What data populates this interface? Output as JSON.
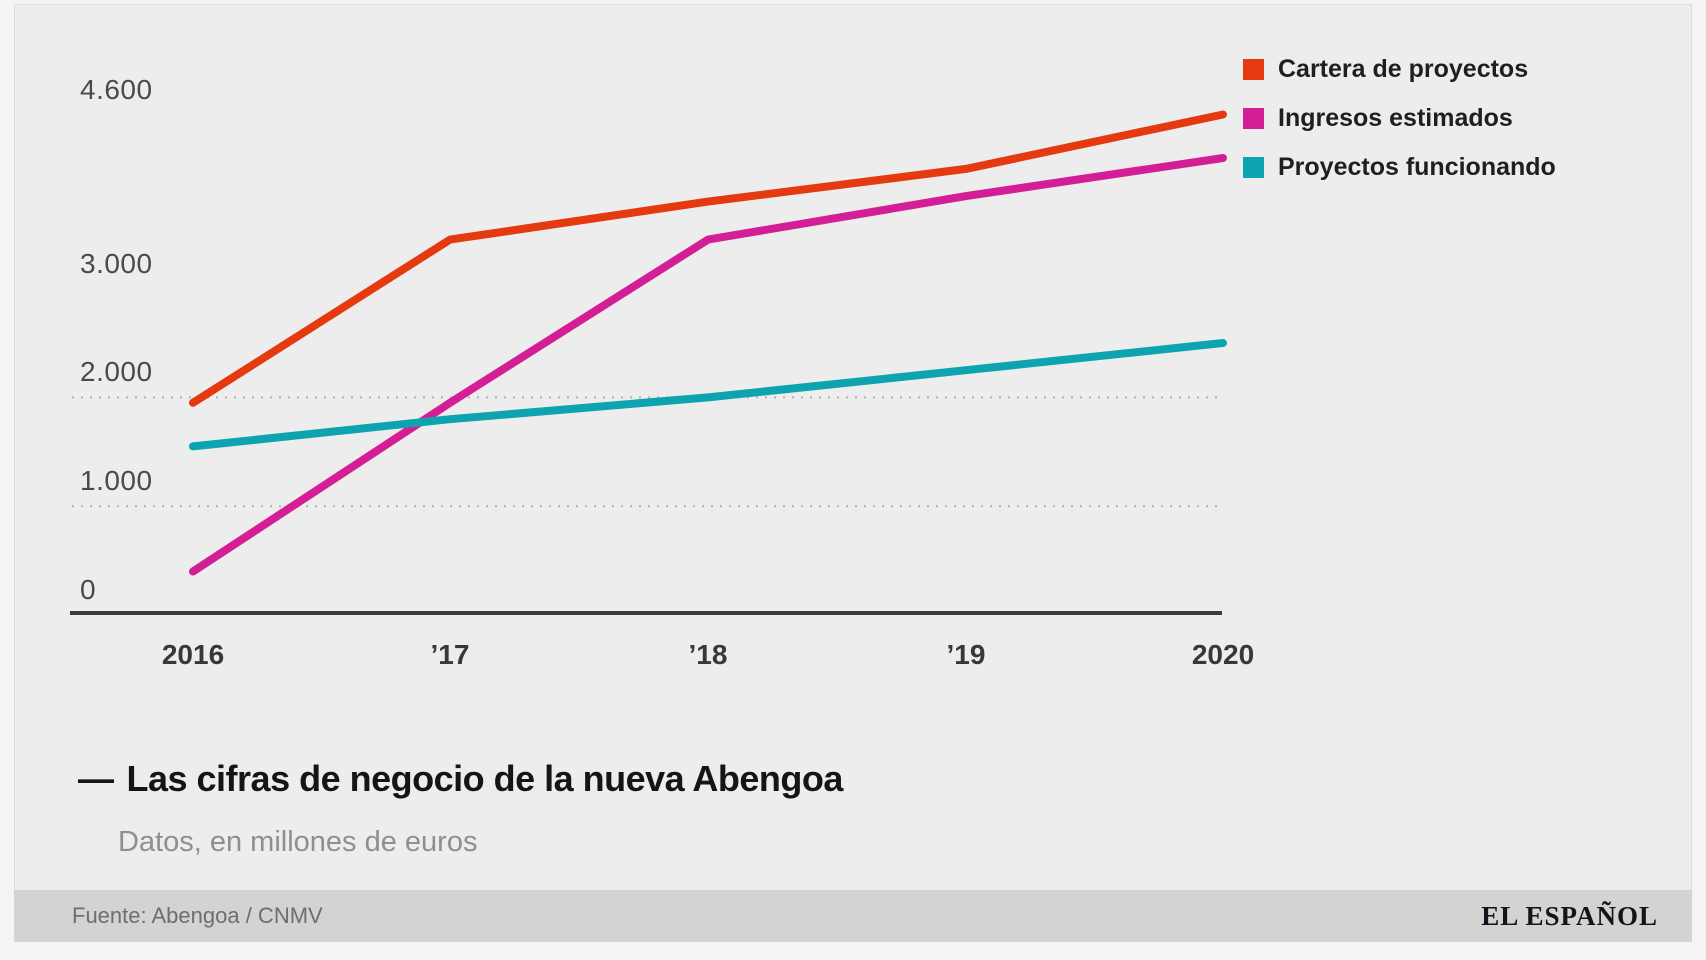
{
  "header": {
    "dash": "—"
  },
  "footer": {
    "brand": "EL ESPAÑOL"
  },
  "chart_data": {
    "type": "line",
    "title": "Las cifras de negocio de la nueva Abengoa",
    "subtitle": "Datos, en millones de euros",
    "source": "Fuente: Abengoa / CNMV",
    "units": "millones de euros",
    "categories": [
      "2016",
      "’17",
      "’18",
      "’19",
      "2020"
    ],
    "series": [
      {
        "name": "Cartera de proyectos",
        "color": "#e5390f",
        "values": [
          1950,
          3450,
          3800,
          4100,
          4600
        ]
      },
      {
        "name": "Ingresos estimados",
        "color": "#d41e96",
        "values": [
          400,
          1950,
          3450,
          3850,
          4200
        ]
      },
      {
        "name": "Proyectos funcionando",
        "color": "#0ea4af",
        "values": [
          1550,
          1800,
          2000,
          2250,
          2500
        ]
      }
    ],
    "y_ticks": [
      {
        "label": "4.600",
        "value": 4600
      },
      {
        "label": "3.000",
        "value": 3000
      },
      {
        "label": "2.000",
        "value": 2000
      },
      {
        "label": "1.000",
        "value": 1000
      },
      {
        "label": "0",
        "value": 0
      }
    ],
    "dashed_gridline_values": [
      2000,
      1000
    ],
    "ylim": [
      0,
      4750
    ],
    "legend_position": "top-right",
    "grid": "dashed gridlines only at 1.000 and 2.000"
  },
  "style": {
    "colors": {
      "background_outer": "#f4f4f4",
      "background_card": "#ededed",
      "footer_bar": "#d4d3d2",
      "axis_line": "#3d3d3d",
      "gridline": "#b3b1ae"
    }
  }
}
